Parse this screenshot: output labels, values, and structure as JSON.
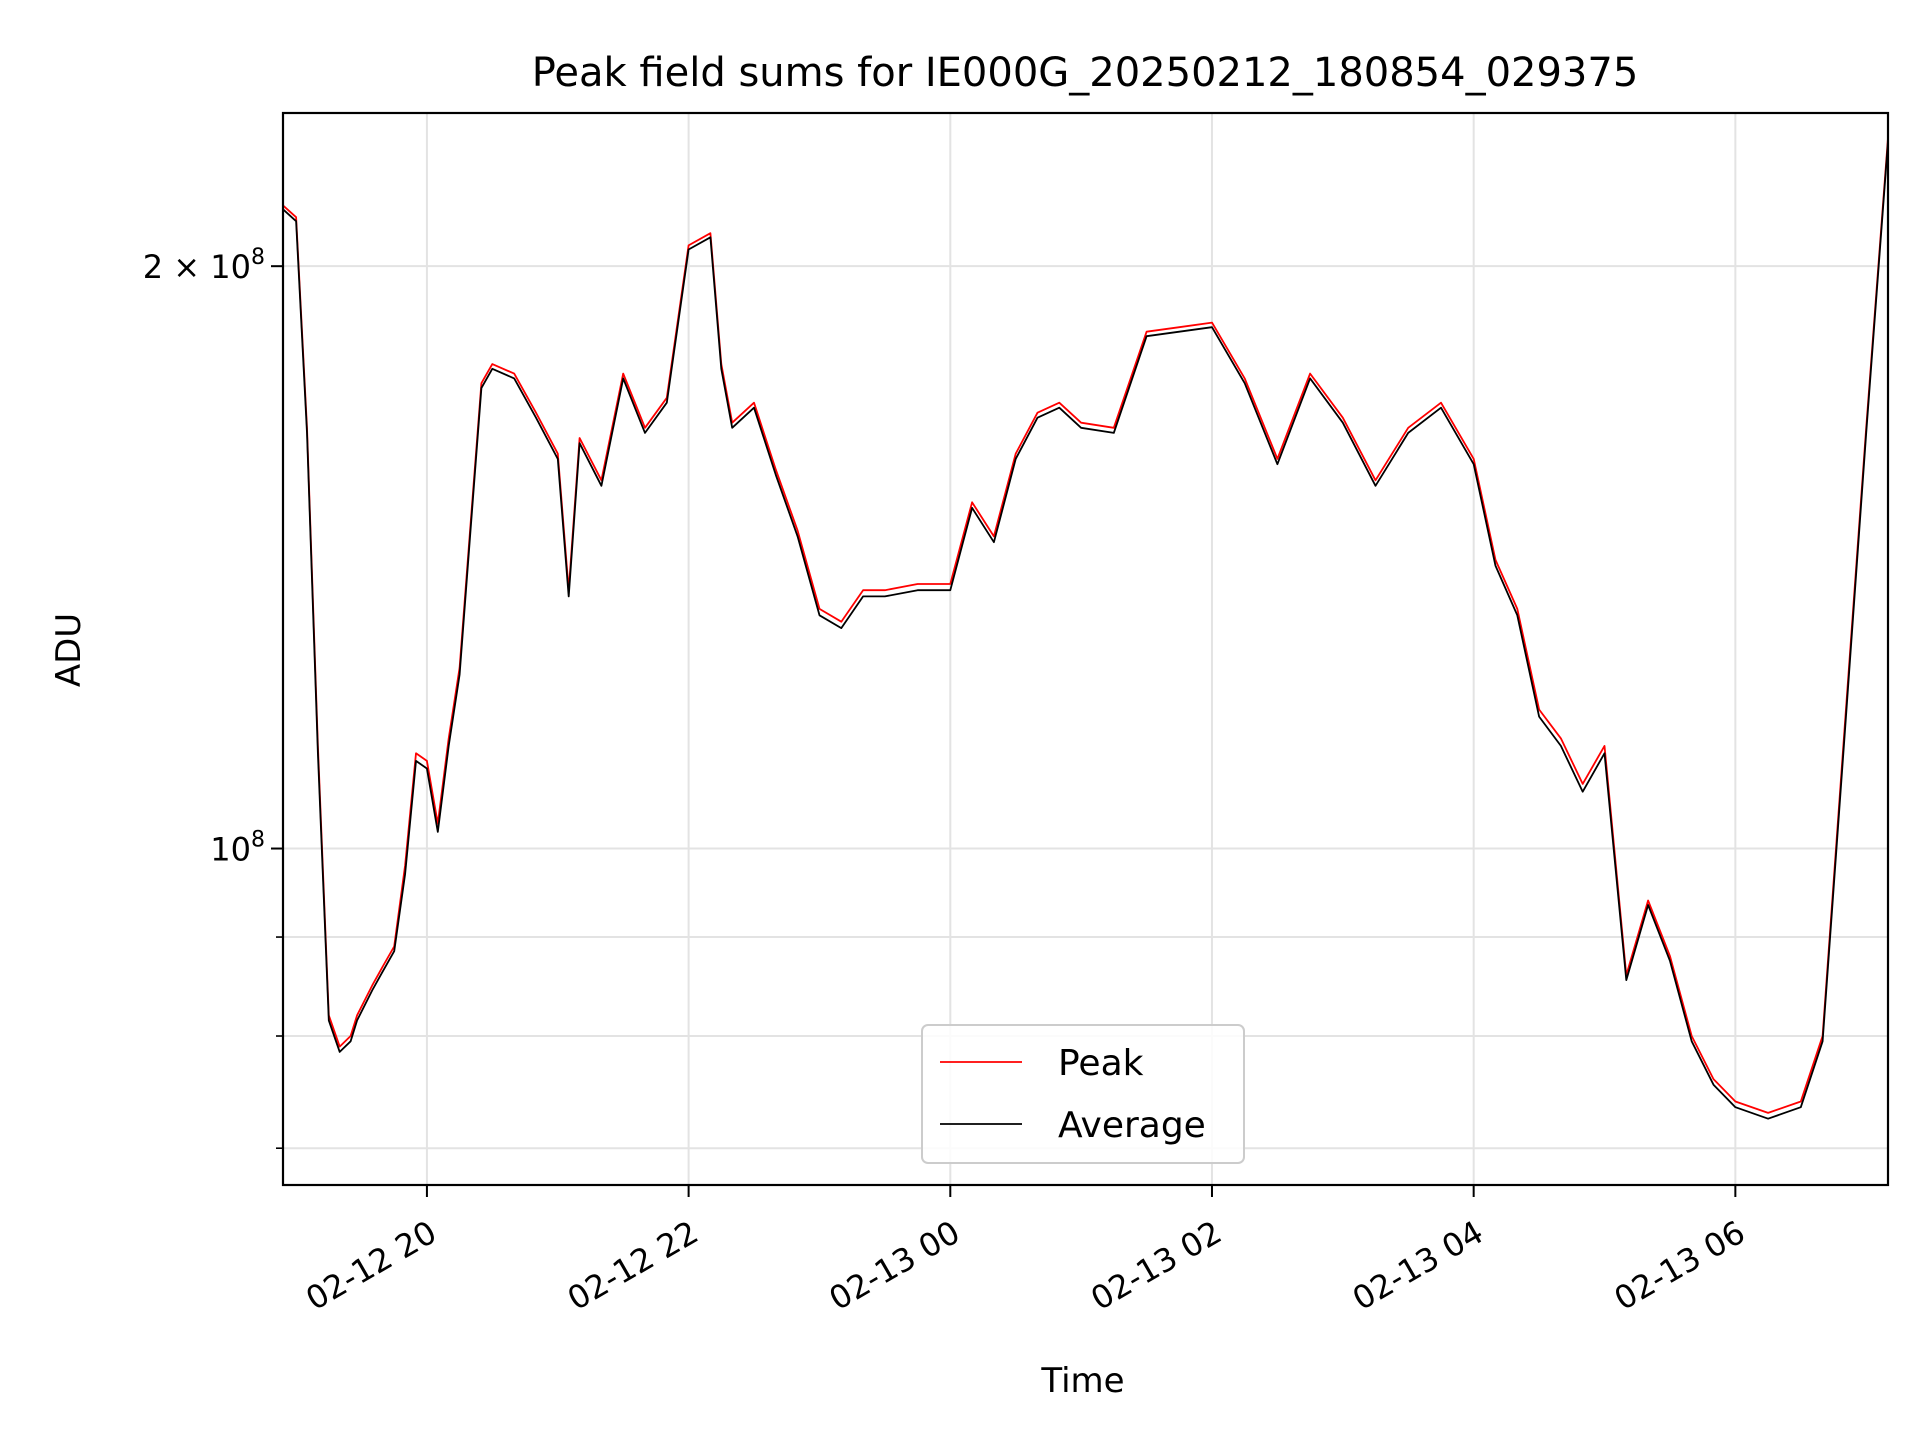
{
  "chart_data": {
    "type": "line",
    "title": "Peak field sums for IE000G_20250212_180854_029375",
    "xlabel": "Time",
    "ylabel": "ADU",
    "x_range": [
      "2025-02-12 18:54",
      "2025-02-13 07:10"
    ],
    "y_scale": "log",
    "ylim": [
      67000000,
      240000000
    ],
    "x_ticks": [
      {
        "value": "2025-02-12 20:00",
        "label": "02-12 20"
      },
      {
        "value": "2025-02-12 22:00",
        "label": "02-12 22"
      },
      {
        "value": "2025-02-13 00:00",
        "label": "02-13 00"
      },
      {
        "value": "2025-02-13 02:00",
        "label": "02-13 02"
      },
      {
        "value": "2025-02-13 04:00",
        "label": "02-13 04"
      },
      {
        "value": "2025-02-13 06:00",
        "label": "02-13 06"
      }
    ],
    "y_ticks_major": [
      {
        "value": 100000000,
        "base": "10",
        "exp": "8",
        "prefix": ""
      },
      {
        "value": 200000000,
        "base": "10",
        "exp": "8",
        "prefix": "2 × "
      }
    ],
    "y_ticks_minor": [
      70000000,
      80000000,
      90000000
    ],
    "grid": true,
    "legend_position": "lower center",
    "series": [
      {
        "name": "Peak",
        "color": "#ff0000",
        "x": [
          "2025-02-12 18:54",
          "2025-02-12 19:00",
          "2025-02-12 19:05",
          "2025-02-12 19:10",
          "2025-02-12 19:15",
          "2025-02-12 19:20",
          "2025-02-12 19:25",
          "2025-02-12 19:28",
          "2025-02-12 19:35",
          "2025-02-12 19:40",
          "2025-02-12 19:45",
          "2025-02-12 19:50",
          "2025-02-12 19:55",
          "2025-02-12 20:00",
          "2025-02-12 20:05",
          "2025-02-12 20:10",
          "2025-02-12 20:15",
          "2025-02-12 20:20",
          "2025-02-12 20:25",
          "2025-02-12 20:30",
          "2025-02-12 20:40",
          "2025-02-12 20:50",
          "2025-02-12 21:00",
          "2025-02-12 21:05",
          "2025-02-12 21:10",
          "2025-02-12 21:20",
          "2025-02-12 21:30",
          "2025-02-12 21:40",
          "2025-02-12 21:50",
          "2025-02-12 22:00",
          "2025-02-12 22:10",
          "2025-02-12 22:15",
          "2025-02-12 22:20",
          "2025-02-12 22:30",
          "2025-02-12 22:40",
          "2025-02-12 22:50",
          "2025-02-12 23:00",
          "2025-02-12 23:10",
          "2025-02-12 23:20",
          "2025-02-12 23:30",
          "2025-02-12 23:45",
          "2025-02-13 00:00",
          "2025-02-13 00:10",
          "2025-02-13 00:20",
          "2025-02-13 00:30",
          "2025-02-13 00:40",
          "2025-02-13 00:50",
          "2025-02-13 01:00",
          "2025-02-13 01:15",
          "2025-02-13 01:30",
          "2025-02-13 01:45",
          "2025-02-13 02:00",
          "2025-02-13 02:15",
          "2025-02-13 02:30",
          "2025-02-13 02:45",
          "2025-02-13 03:00",
          "2025-02-13 03:15",
          "2025-02-13 03:30",
          "2025-02-13 03:45",
          "2025-02-13 04:00",
          "2025-02-13 04:10",
          "2025-02-13 04:20",
          "2025-02-13 04:30",
          "2025-02-13 04:40",
          "2025-02-13 04:50",
          "2025-02-13 05:00",
          "2025-02-13 05:10",
          "2025-02-13 05:20",
          "2025-02-13 05:30",
          "2025-02-13 05:40",
          "2025-02-13 05:50",
          "2025-02-13 06:00",
          "2025-02-13 06:15",
          "2025-02-13 06:30",
          "2025-02-13 06:40",
          "2025-02-13 06:50",
          "2025-02-13 07:00",
          "2025-02-13 07:10"
        ],
        "values": [
          215000000,
          212000000,
          165000000,
          113000000,
          82000000,
          79000000,
          80000000,
          82000000,
          85000000,
          87000000,
          89000000,
          98000000,
          112000000,
          111000000,
          103000000,
          114000000,
          124000000,
          147000000,
          174000000,
          178000000,
          176000000,
          168000000,
          160000000,
          136000000,
          163000000,
          155000000,
          176000000,
          165000000,
          171000000,
          205000000,
          208000000,
          178000000,
          166000000,
          170000000,
          157000000,
          146000000,
          133000000,
          131000000,
          136000000,
          136000000,
          137000000,
          137000000,
          151000000,
          145000000,
          160000000,
          168000000,
          170000000,
          166000000,
          165000000,
          185000000,
          186000000,
          187000000,
          175000000,
          159000000,
          176000000,
          167000000,
          155000000,
          165000000,
          170000000,
          159000000,
          141000000,
          133000000,
          118000000,
          114000000,
          108000000,
          113000000,
          86000000,
          94000000,
          88000000,
          80000000,
          76000000,
          74000000,
          73000000,
          74000000,
          80000000,
          115000000,
          165000000,
          233000000
        ]
      },
      {
        "name": "Average",
        "color": "#000000",
        "x": [
          "2025-02-12 18:54",
          "2025-02-12 19:00",
          "2025-02-12 19:05",
          "2025-02-12 19:10",
          "2025-02-12 19:15",
          "2025-02-12 19:20",
          "2025-02-12 19:25",
          "2025-02-12 19:28",
          "2025-02-12 19:35",
          "2025-02-12 19:40",
          "2025-02-12 19:45",
          "2025-02-12 19:50",
          "2025-02-12 19:55",
          "2025-02-12 20:00",
          "2025-02-12 20:05",
          "2025-02-12 20:10",
          "2025-02-12 20:15",
          "2025-02-12 20:20",
          "2025-02-12 20:25",
          "2025-02-12 20:30",
          "2025-02-12 20:40",
          "2025-02-12 20:50",
          "2025-02-12 21:00",
          "2025-02-12 21:05",
          "2025-02-12 21:10",
          "2025-02-12 21:20",
          "2025-02-12 21:30",
          "2025-02-12 21:40",
          "2025-02-12 21:50",
          "2025-02-12 22:00",
          "2025-02-12 22:10",
          "2025-02-12 22:15",
          "2025-02-12 22:20",
          "2025-02-12 22:30",
          "2025-02-12 22:40",
          "2025-02-12 22:50",
          "2025-02-12 23:00",
          "2025-02-12 23:10",
          "2025-02-12 23:20",
          "2025-02-12 23:30",
          "2025-02-12 23:45",
          "2025-02-13 00:00",
          "2025-02-13 00:10",
          "2025-02-13 00:20",
          "2025-02-13 00:30",
          "2025-02-13 00:40",
          "2025-02-13 00:50",
          "2025-02-13 01:00",
          "2025-02-13 01:15",
          "2025-02-13 01:30",
          "2025-02-13 01:45",
          "2025-02-13 02:00",
          "2025-02-13 02:15",
          "2025-02-13 02:30",
          "2025-02-13 02:45",
          "2025-02-13 03:00",
          "2025-02-13 03:15",
          "2025-02-13 03:30",
          "2025-02-13 03:45",
          "2025-02-13 04:00",
          "2025-02-13 04:10",
          "2025-02-13 04:20",
          "2025-02-13 04:30",
          "2025-02-13 04:40",
          "2025-02-13 04:50",
          "2025-02-13 05:00",
          "2025-02-13 05:10",
          "2025-02-13 05:20",
          "2025-02-13 05:30",
          "2025-02-13 05:40",
          "2025-02-13 05:50",
          "2025-02-13 06:00",
          "2025-02-13 06:15",
          "2025-02-13 06:30",
          "2025-02-13 06:40",
          "2025-02-13 06:50",
          "2025-02-13 07:00",
          "2025-02-13 07:10"
        ],
        "values": [
          214000000,
          211000000,
          164000000,
          112000000,
          81500000,
          78500000,
          79500000,
          81500000,
          84500000,
          86500000,
          88500000,
          97000000,
          111000000,
          110000000,
          102000000,
          113000000,
          123000000,
          146000000,
          173000000,
          177000000,
          175000000,
          167000000,
          159000000,
          135000000,
          162000000,
          154000000,
          175000000,
          164000000,
          170000000,
          204000000,
          207000000,
          177000000,
          165000000,
          169000000,
          156000000,
          145000000,
          132000000,
          130000000,
          135000000,
          135000000,
          136000000,
          136000000,
          150000000,
          144000000,
          159000000,
          167000000,
          169000000,
          165000000,
          164000000,
          184000000,
          185000000,
          186000000,
          174000000,
          158000000,
          175000000,
          166000000,
          154000000,
          164000000,
          169000000,
          158000000,
          140000000,
          132000000,
          117000000,
          113000000,
          107000000,
          112000000,
          85500000,
          93500000,
          87500000,
          79500000,
          75500000,
          73500000,
          72500000,
          73500000,
          79500000,
          114000000,
          164000000,
          232000000
        ]
      }
    ]
  }
}
